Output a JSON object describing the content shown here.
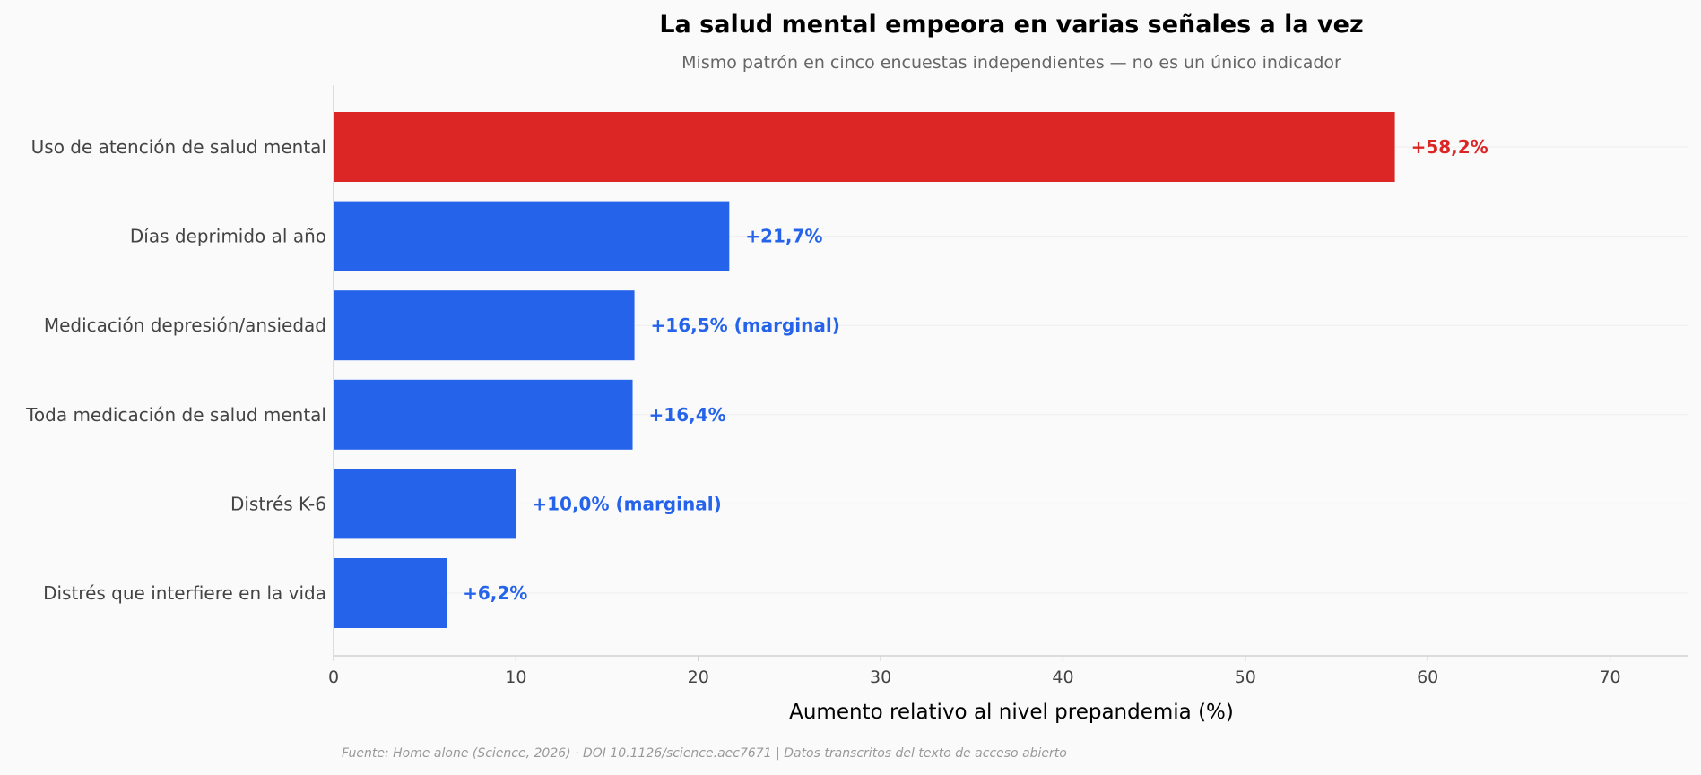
{
  "chart_data": {
    "type": "bar",
    "orientation": "horizontal",
    "title": "La salud mental empeora en varias señales a la vez",
    "subtitle": "Mismo patrón en cinco encuestas independientes — no es un único indicador",
    "xlabel": "Aumento relativo al nivel prepandemia (%)",
    "ylabel": "",
    "xlim": [
      0,
      74.3
    ],
    "x_ticks": [
      "0",
      "10",
      "20",
      "30",
      "40",
      "50",
      "60",
      "70"
    ],
    "grid": "horizontal-light",
    "categories": [
      "Uso de atención de salud mental",
      "Días deprimido al año",
      "Medicación depresión/ansiedad",
      "Toda medicación de salud mental",
      "Distrés K-6",
      "Distrés que interfiere en la vida"
    ],
    "values": [
      58.2,
      21.7,
      16.5,
      16.4,
      10.0,
      6.2
    ],
    "data_labels": [
      "+58,2%",
      "+21,7%",
      "+16,5% (marginal)",
      "+16,4%",
      "+10,0% (marginal)",
      "+6,2%"
    ],
    "colors": [
      "#dc2626",
      "#2563eb",
      "#2563eb",
      "#2563eb",
      "#2563eb",
      "#2563eb"
    ],
    "source": "Fuente: Home alone (Science, 2026) · DOI 10.1126/science.aec7671 | Datos transcritos del texto de acceso abierto"
  }
}
